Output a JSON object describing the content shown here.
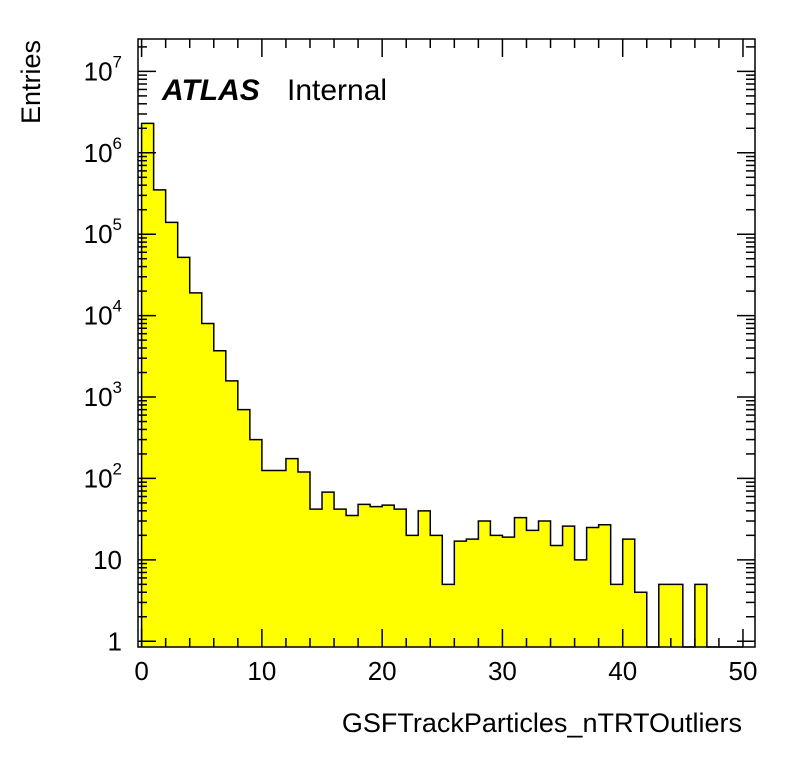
{
  "chart_data": {
    "type": "bar",
    "subtype": "histogram",
    "xlabel": "GSFTrackParticles_nTRTOutliers",
    "ylabel": "Entries",
    "annotation": {
      "experiment": "ATLAS",
      "status": "Internal"
    },
    "xlim": [
      -0.3,
      51
    ],
    "ylim": [
      0.85,
      25000000
    ],
    "y_scale": "log",
    "bin_width": 1,
    "bin_low_edges": [
      0,
      1,
      2,
      3,
      4,
      5,
      6,
      7,
      8,
      9,
      10,
      11,
      12,
      13,
      14,
      15,
      16,
      17,
      18,
      19,
      20,
      21,
      22,
      23,
      24,
      25,
      26,
      27,
      28,
      29,
      30,
      31,
      32,
      33,
      34,
      35,
      36,
      37,
      38,
      39,
      40,
      41,
      42,
      43,
      44,
      45,
      46,
      47,
      48,
      49
    ],
    "values": [
      2300000,
      350000,
      140000,
      52000,
      19000,
      8000,
      3700,
      1580,
      700,
      300,
      125,
      125,
      175,
      120,
      42,
      68,
      42,
      35,
      48,
      45,
      47,
      42,
      20,
      40,
      20,
      5,
      17,
      18,
      30,
      20,
      19,
      33,
      23,
      30,
      15,
      26,
      10,
      25,
      27,
      5,
      18,
      4,
      0,
      5,
      5,
      0,
      5,
      0,
      0,
      0
    ],
    "x_ticks": [
      0,
      10,
      20,
      30,
      40,
      50
    ],
    "x_tick_labels": [
      "0",
      "10",
      "20",
      "30",
      "40",
      "50"
    ],
    "y_ticks": [
      1,
      10,
      100,
      1000,
      10000,
      100000,
      1000000,
      10000000
    ],
    "y_tick_labels": [
      {
        "base": "1",
        "exp": ""
      },
      {
        "base": "10",
        "exp": ""
      },
      {
        "base": "10",
        "exp": "2"
      },
      {
        "base": "10",
        "exp": "3"
      },
      {
        "base": "10",
        "exp": "4"
      },
      {
        "base": "10",
        "exp": "5"
      },
      {
        "base": "10",
        "exp": "6"
      },
      {
        "base": "10",
        "exp": "7"
      }
    ],
    "fill_color": "#ffff00",
    "line_color": "#000000",
    "legend": "none",
    "grid": false
  }
}
